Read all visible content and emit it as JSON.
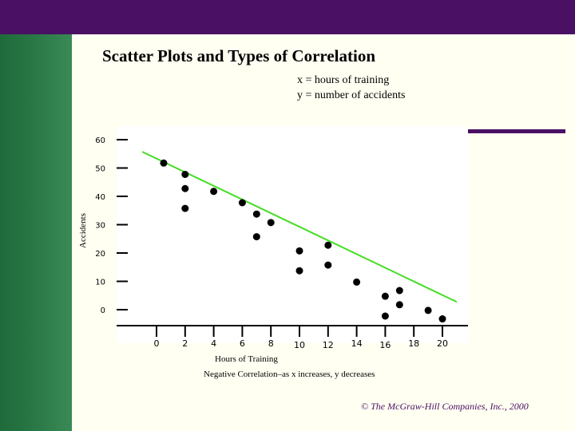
{
  "slide": {
    "title": "Scatter Plots and Types of Correlation",
    "var_x": "x = hours of training",
    "var_y": "y = number of accidents",
    "caption": "Negative Correlation–as x increases, y decreases",
    "footer": "© The McGraw-Hill Companies, Inc., 2000"
  },
  "colors": {
    "top_bar": "#4a1063",
    "left_band": "#2b7a48",
    "trend_line": "#44dd22",
    "points": "#000000"
  },
  "chart_data": {
    "type": "scatter",
    "title": "",
    "xlabel": "Hours of Training",
    "ylabel": "Accidents",
    "x_ticks": [
      0,
      2,
      4,
      6,
      8,
      10,
      12,
      14,
      16,
      18,
      20
    ],
    "y_ticks": [
      0,
      10,
      20,
      30,
      40,
      50,
      60
    ],
    "xlim": [
      0,
      20
    ],
    "ylim": [
      0,
      60
    ],
    "grid": false,
    "points": [
      {
        "x": 0.5,
        "y": 54
      },
      {
        "x": 2,
        "y": 50
      },
      {
        "x": 2,
        "y": 45
      },
      {
        "x": 2,
        "y": 38
      },
      {
        "x": 4,
        "y": 44
      },
      {
        "x": 6,
        "y": 40
      },
      {
        "x": 7,
        "y": 36
      },
      {
        "x": 7,
        "y": 28
      },
      {
        "x": 8,
        "y": 33
      },
      {
        "x": 10,
        "y": 23
      },
      {
        "x": 10,
        "y": 16
      },
      {
        "x": 12,
        "y": 25
      },
      {
        "x": 12,
        "y": 18
      },
      {
        "x": 14,
        "y": 12
      },
      {
        "x": 16,
        "y": 7
      },
      {
        "x": 16,
        "y": 0
      },
      {
        "x": 17,
        "y": 9
      },
      {
        "x": 17,
        "y": 4
      },
      {
        "x": 19,
        "y": 2
      },
      {
        "x": 20,
        "y": -1
      }
    ],
    "trend_line": {
      "x": [
        -1,
        21
      ],
      "y": [
        58,
        5
      ]
    }
  }
}
